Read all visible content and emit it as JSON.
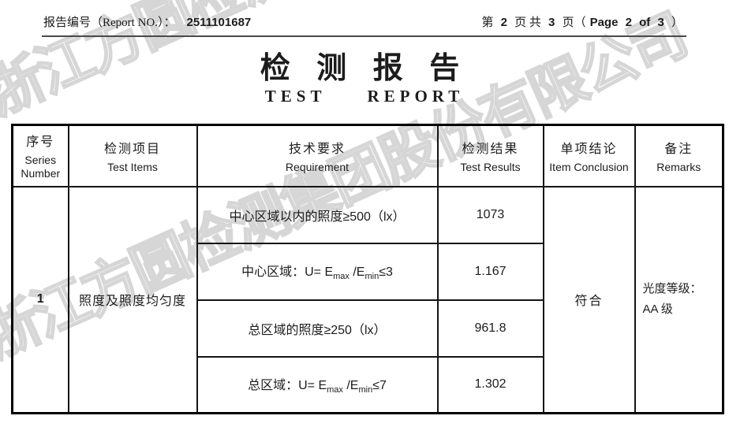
{
  "watermark": {
    "text": "浙江方圆检测集团股份有限公司",
    "outline_color": "#d6d6d6"
  },
  "header": {
    "report_no_label": "报告编号（Report NO.）：",
    "report_no": "2511101687",
    "page_right": {
      "zh1": "第",
      "n1": "2",
      "zh2": "页 共",
      "n2": "3",
      "zh3": "页（",
      "en1": "Page",
      "n3": "2",
      "en2": "of",
      "n4": "3",
      "zh4": "）"
    }
  },
  "title": {
    "zh": "检 测 报 告",
    "en_left": "TEST",
    "en_right": "REPORT"
  },
  "table": {
    "columns": [
      {
        "zh": "序号",
        "en": "Series Number"
      },
      {
        "zh": "检测项目",
        "en": "Test Items"
      },
      {
        "zh": "技术要求",
        "en": "Requirement"
      },
      {
        "zh": "检测结果",
        "en": "Test Results"
      },
      {
        "zh": "单项结论",
        "en": "Item Conclusion"
      },
      {
        "zh": "备注",
        "en": "Remarks"
      }
    ],
    "group": {
      "series_number": "1",
      "test_item": "照度及照度均匀度",
      "conclusion": "符合",
      "remarks_lines": [
        "光度等级：",
        "AA 级"
      ],
      "entries": [
        {
          "requirement": "中心区域以内的照度≥500（lx）",
          "result": "1073"
        },
        {
          "requirement": "中心区域：U= E[max] /E[min]≤3",
          "result": "1.167"
        },
        {
          "requirement": "总区域的照度≥250（lx）",
          "result": "961.8"
        },
        {
          "requirement": "总区域：U= E[max] /E[min]≤7",
          "result": "1.302"
        }
      ]
    }
  }
}
